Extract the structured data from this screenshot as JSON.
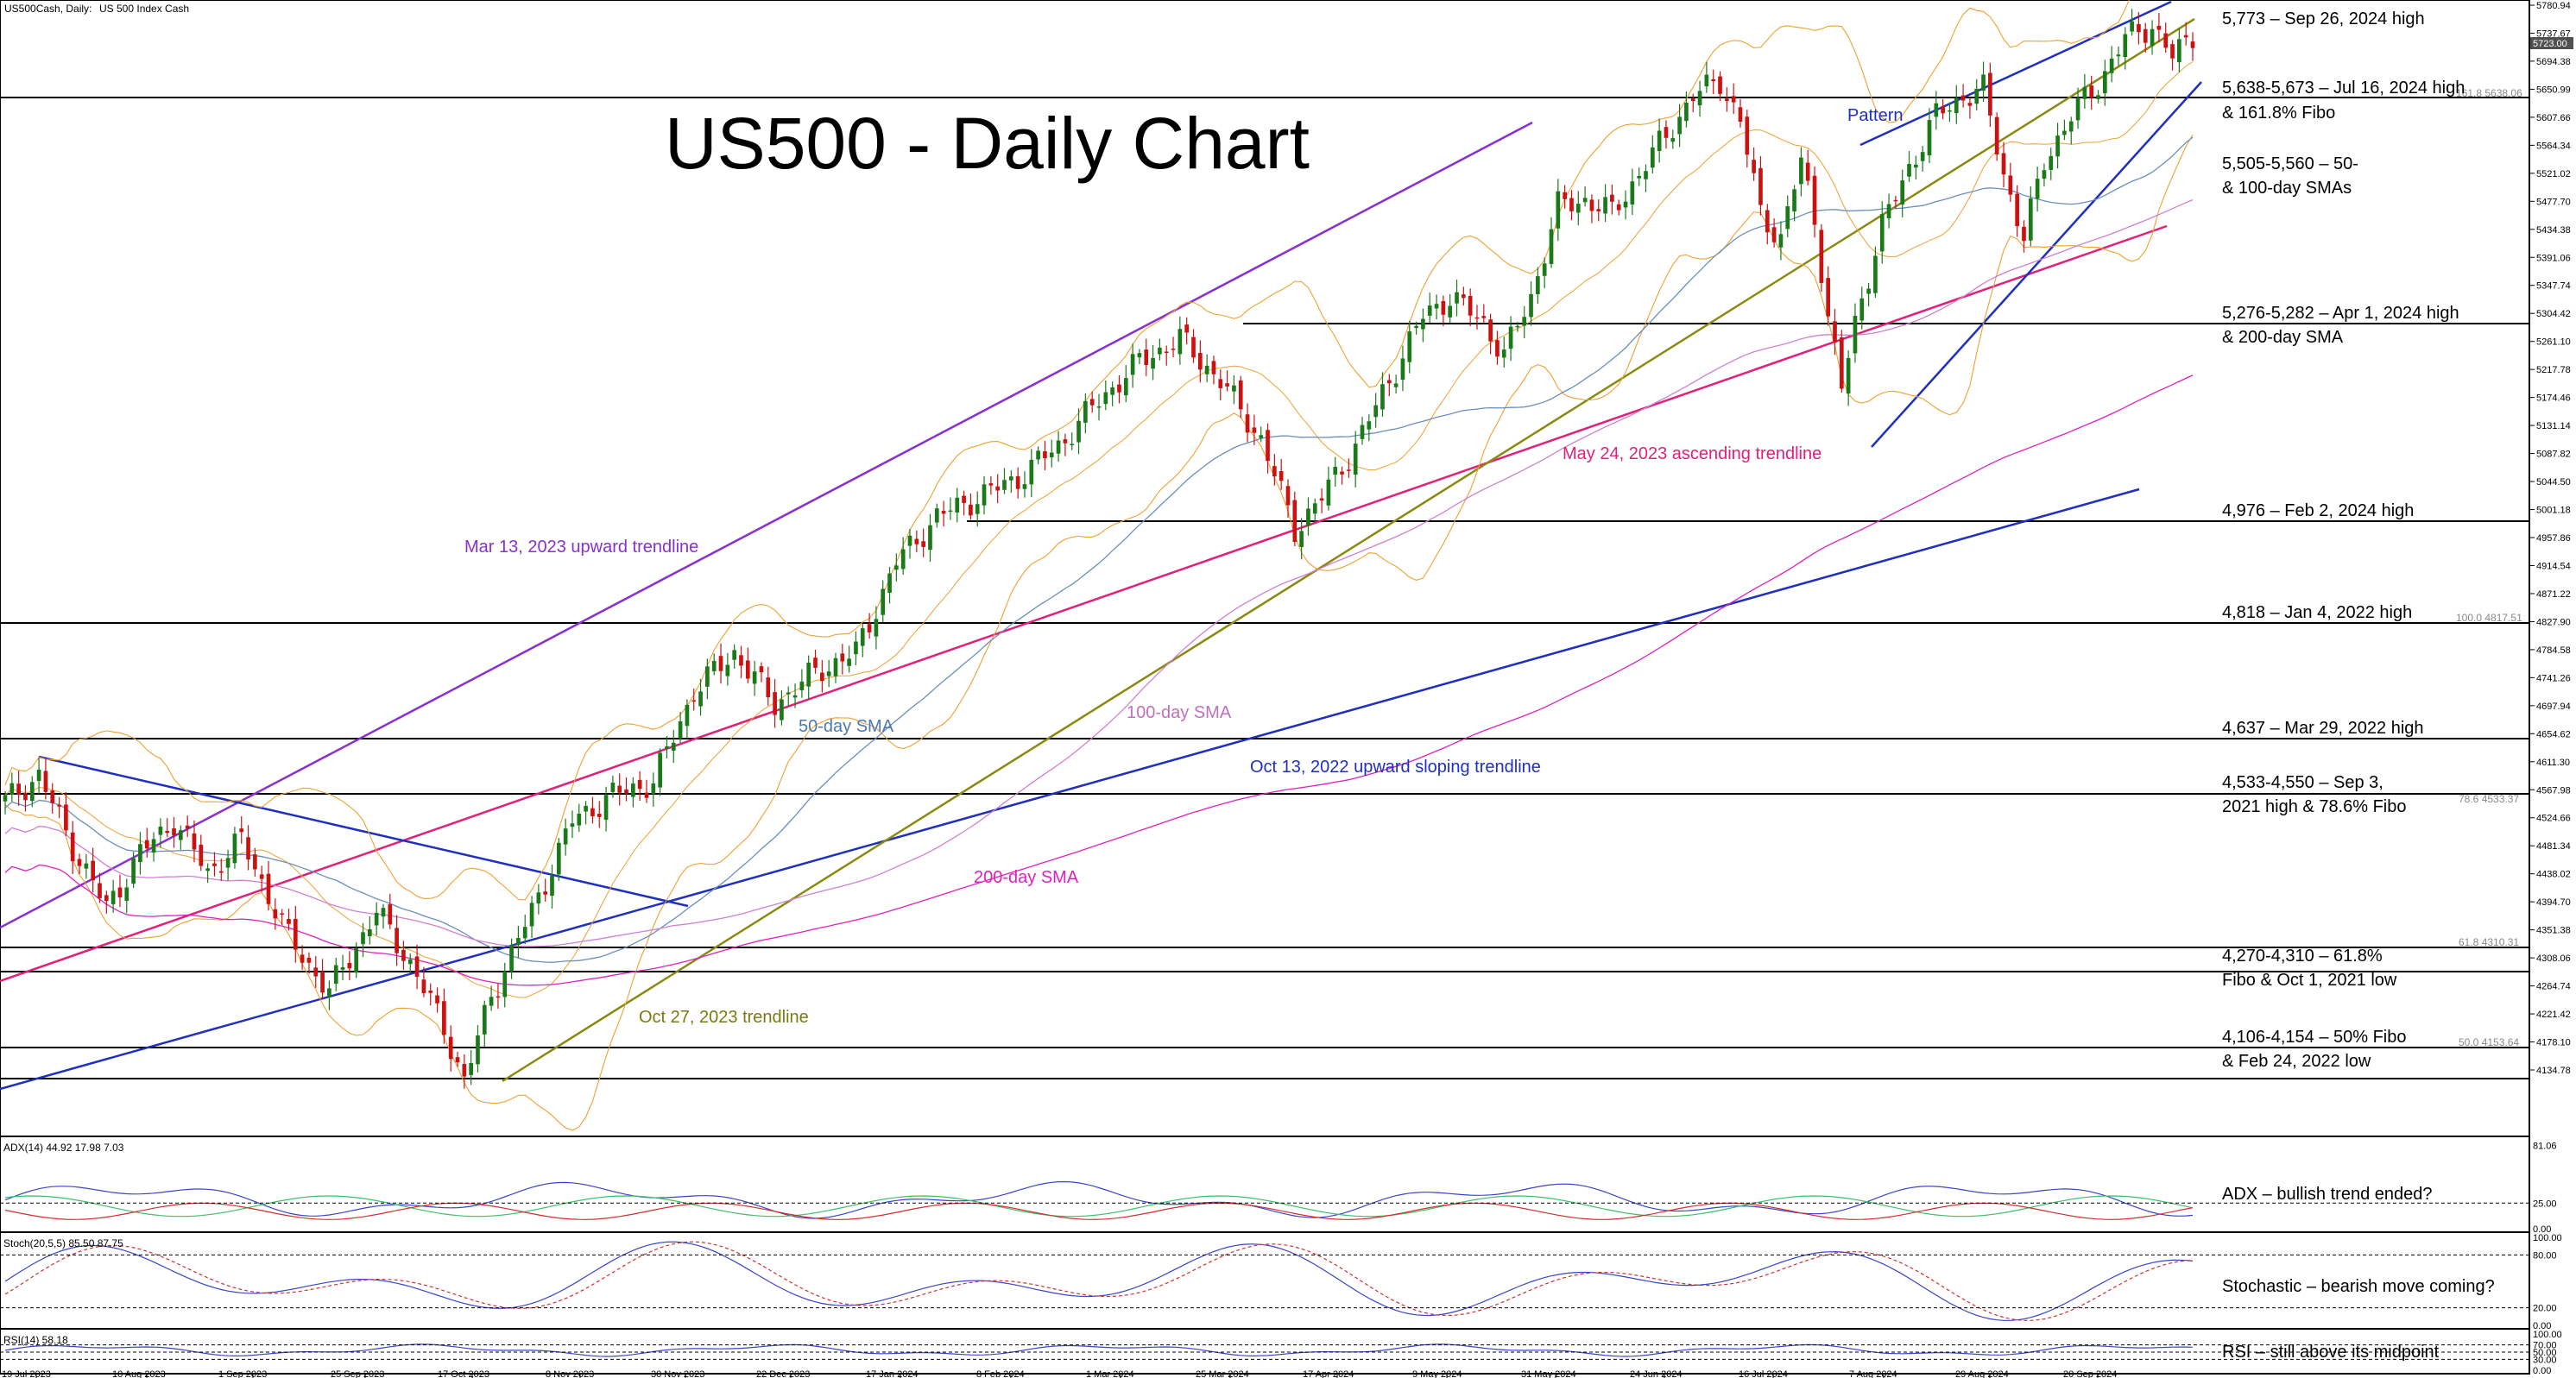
{
  "header": {
    "symbol": "US500Cash, Daily:",
    "description": "US 500 Index Cash"
  },
  "title": "US500 - Daily Chart",
  "chart_data": {
    "type": "candlestick",
    "panels": [
      "price",
      "adx",
      "stochastic",
      "rsi"
    ],
    "price_axis": {
      "range": [
        4090,
        5782
      ],
      "ticks": [
        "5780.94",
        "5737.67",
        "5694.38",
        "5650.99",
        "5607.66",
        "5564.34",
        "5521.02",
        "5477.70",
        "5434.38",
        "5391.06",
        "5347.74",
        "5304.42",
        "5261.10",
        "5217.78",
        "5174.46",
        "5131.14",
        "5087.82",
        "5044.50",
        "5001.18",
        "4957.86",
        "4914.54",
        "4871.22",
        "4827.90",
        "4784.58",
        "4741.26",
        "4697.94",
        "4654.62",
        "4611.30",
        "4567.98",
        "4524.66",
        "4481.34",
        "4438.02",
        "4394.70",
        "4351.38",
        "4308.06",
        "4264.74",
        "4221.42",
        "4178.10",
        "4134.78"
      ],
      "last_price_badge": "5723.00"
    },
    "date_axis": [
      "19 Jul 2023",
      "10 Aug 2023",
      "1 Sep 2023",
      "25 Sep 2023",
      "17 Oct 2023",
      "8 Nov 2023",
      "30 Nov 2023",
      "22 Dec 2023",
      "17 Jan 2024",
      "8 Feb 2024",
      "1 Mar 2024",
      "25 Mar 2024",
      "17 Apr 2024",
      "9 May 2024",
      "31 May 2024",
      "24 Jun 2024",
      "16 Jul 2024",
      "7 Aug 2024",
      "29 Aug 2024",
      "20 Sep 2024"
    ],
    "price_path": [
      [
        0,
        4550
      ],
      [
        5,
        4590
      ],
      [
        10,
        4480
      ],
      [
        15,
        4385
      ],
      [
        20,
        4470
      ],
      [
        25,
        4520
      ],
      [
        30,
        4440
      ],
      [
        35,
        4490
      ],
      [
        42,
        4340
      ],
      [
        48,
        4255
      ],
      [
        55,
        4380
      ],
      [
        60,
        4300
      ],
      [
        65,
        4200
      ],
      [
        68,
        4117
      ],
      [
        72,
        4250
      ],
      [
        78,
        4380
      ],
      [
        84,
        4520
      ],
      [
        90,
        4560
      ],
      [
        96,
        4580
      ],
      [
        102,
        4720
      ],
      [
        108,
        4780
      ],
      [
        114,
        4700
      ],
      [
        120,
        4750
      ],
      [
        126,
        4780
      ],
      [
        132,
        4920
      ],
      [
        138,
        4990
      ],
      [
        144,
        5020
      ],
      [
        150,
        5050
      ],
      [
        156,
        5100
      ],
      [
        162,
        5170
      ],
      [
        168,
        5230
      ],
      [
        174,
        5265
      ],
      [
        180,
        5200
      ],
      [
        186,
        5110
      ],
      [
        191,
        4970
      ],
      [
        195,
        5020
      ],
      [
        200,
        5100
      ],
      [
        205,
        5200
      ],
      [
        210,
        5300
      ],
      [
        214,
        5330
      ],
      [
        219,
        5290
      ],
      [
        222,
        5240
      ],
      [
        226,
        5330
      ],
      [
        230,
        5470
      ],
      [
        234,
        5480
      ],
      [
        238,
        5460
      ],
      [
        242,
        5520
      ],
      [
        246,
        5580
      ],
      [
        250,
        5640
      ],
      [
        254,
        5665
      ],
      [
        257,
        5600
      ],
      [
        260,
        5460
      ],
      [
        263,
        5420
      ],
      [
        266,
        5540
      ],
      [
        268,
        5450
      ],
      [
        270,
        5300
      ],
      [
        272,
        5186
      ],
      [
        274,
        5290
      ],
      [
        278,
        5440
      ],
      [
        282,
        5530
      ],
      [
        286,
        5610
      ],
      [
        290,
        5640
      ],
      [
        293,
        5650
      ],
      [
        296,
        5520
      ],
      [
        299,
        5420
      ],
      [
        302,
        5540
      ],
      [
        306,
        5610
      ],
      [
        310,
        5660
      ],
      [
        314,
        5730
      ],
      [
        318,
        5750
      ],
      [
        321,
        5700
      ],
      [
        324,
        5735
      ]
    ],
    "moving_averages": {
      "50-day SMA": "steelblue",
      "100-day SMA": "violet",
      "200-day SMA": "magenta"
    },
    "horizontal_levels": [
      {
        "value": "5,773",
        "label": "5,773 – Sep 26, 2024 high"
      },
      {
        "value": "5,638-5,673",
        "label1": "5,638-5,673 – Jul 16, 2024 high",
        "label2": "& 161.8% Fibo"
      },
      {
        "value": "5,505-5,560",
        "label1": "5,505-5,560 – 50-",
        "label2": "& 100-day SMAs"
      },
      {
        "value": "5,276-5,282",
        "label1": "5,276-5,282 – Apr 1, 2024 high",
        "label2": "& 200-day SMA"
      },
      {
        "value": "4,976",
        "label": "4,976 – Feb 2, 2024 high"
      },
      {
        "value": "4,818",
        "label": "4,818 – Jan 4, 2022 high"
      },
      {
        "value": "4,637",
        "label": "4,637 – Mar 29, 2022 high"
      },
      {
        "value": "4,533-4,550",
        "label1": "4,533-4,550 – Sep 3,",
        "label2": "2021 high & 78.6% Fibo"
      },
      {
        "value": "4,270-4,310",
        "label1": "4,270-4,310 – 61.8%",
        "label2": "Fibo & Oct 1, 2021 low"
      },
      {
        "value": "4,106-4,154",
        "label1": "4,106-4,154 – 50% Fibo",
        "label2": "& Feb 24, 2022 low"
      }
    ],
    "fibo_labels": [
      "161.8 5638.06",
      "100.0 4817.51",
      "78.6 4533.37",
      "61.8 4310.31",
      "50.0 4153.64"
    ],
    "annotations": {
      "mar13": "Mar 13, 2023 upward trendline",
      "oct27": "Oct 27, 2023 trendline",
      "oct13": "Oct 13, 2022 upward sloping trendline",
      "may24": "May 24, 2023 ascending trendline",
      "pattern": "Pattern",
      "sma50": "50-day SMA",
      "sma100": "100-day SMA",
      "sma200": "200-day SMA"
    },
    "adx": {
      "header": "ADX(14) 44.92 17.98 7.03",
      "ticks": [
        "81.06",
        "25.00",
        "0.00"
      ],
      "note": "ADX – bullish trend ended?"
    },
    "stochastic": {
      "header": "Stoch(20,5,5) 85.50 87.75",
      "ticks": [
        "100.00",
        "80.00",
        "20.00",
        "0.00"
      ],
      "note": "Stochastic – bearish move coming?"
    },
    "rsi": {
      "header": "RSI(14) 58.18",
      "ticks": [
        "100.00",
        "70.00",
        "50.00",
        "30.00",
        "0.00"
      ],
      "note": "RSI – still above its midpoint"
    },
    "colors": {
      "up": "#1a7a1a",
      "down": "#cc1111",
      "bollinger": "#f0a030",
      "trend_blue": "#1f2fbf",
      "trend_purple": "#8a2fd0",
      "trend_pink": "#e0207a",
      "trend_olive": "#8a8a10",
      "adx_plus": "#3cbf6a",
      "adx_minus": "#d03030",
      "adx_main": "#3a44c8"
    }
  }
}
